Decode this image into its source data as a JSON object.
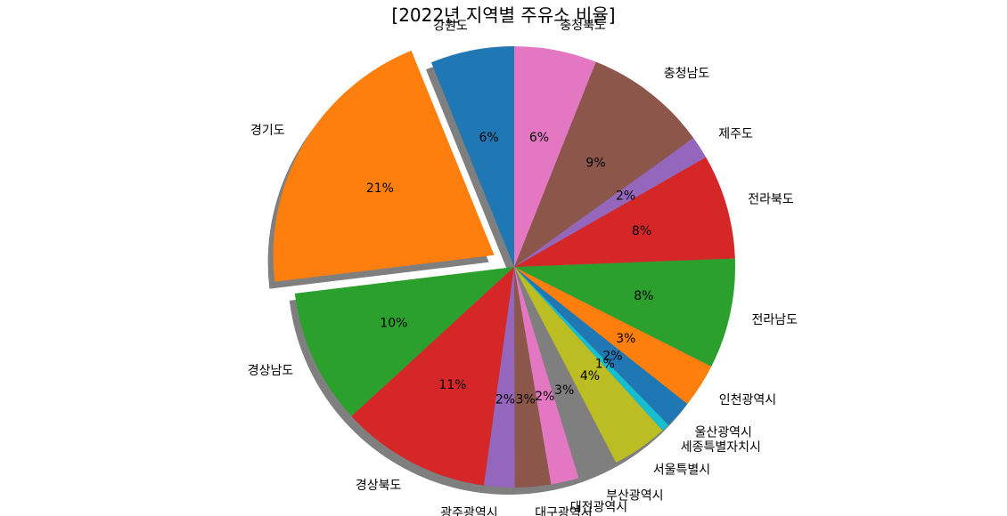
{
  "chart_data": {
    "type": "pie",
    "title": "[2022년 지역별 주유소 비율]",
    "start_angle_deg": 90,
    "direction": "counterclockwise",
    "shadow": true,
    "exploded": [
      "경기도"
    ],
    "slices": [
      {
        "label": "강원도",
        "value": 6.3,
        "pct_text": "6%",
        "color": "#1f77b4"
      },
      {
        "label": "경기도",
        "value": 21.4,
        "pct_text": "21%",
        "color": "#ff7f0e"
      },
      {
        "label": "경상남도",
        "value": 10.2,
        "pct_text": "10%",
        "color": "#2ca02c"
      },
      {
        "label": "경상북도",
        "value": 11.3,
        "pct_text": "11%",
        "color": "#d62728"
      },
      {
        "label": "광주광역시",
        "value": 2.3,
        "pct_text": "2%",
        "color": "#9467bd"
      },
      {
        "label": "대구광역시",
        "value": 2.7,
        "pct_text": "3%",
        "color": "#8c564b"
      },
      {
        "label": "대전광역시",
        "value": 2.1,
        "pct_text": "2%",
        "color": "#e377c2"
      },
      {
        "label": "부산광역시",
        "value": 3.0,
        "pct_text": "3%",
        "color": "#7f7f7f"
      },
      {
        "label": "서울특별시",
        "value": 4.2,
        "pct_text": "4%",
        "color": "#bcbd22"
      },
      {
        "label": "세종특별자치시",
        "value": 0.6,
        "pct_text": "1%",
        "color": "#17becf"
      },
      {
        "label": "울산광역시",
        "value": 2.1,
        "pct_text": "2%",
        "color": "#1f77b4"
      },
      {
        "label": "인천광역시",
        "value": 3.3,
        "pct_text": "3%",
        "color": "#ff7f0e"
      },
      {
        "label": "전라남도",
        "value": 8.3,
        "pct_text": "8%",
        "color": "#2ca02c"
      },
      {
        "label": "전라북도",
        "value": 7.9,
        "pct_text": "8%",
        "color": "#d62728"
      },
      {
        "label": "제주도",
        "value": 1.7,
        "pct_text": "2%",
        "color": "#9467bd"
      },
      {
        "label": "충청남도",
        "value": 9.3,
        "pct_text": "9%",
        "color": "#8c564b"
      },
      {
        "label": "충청북도",
        "value": 6.2,
        "pct_text": "6%",
        "color": "#e377c2"
      }
    ]
  }
}
